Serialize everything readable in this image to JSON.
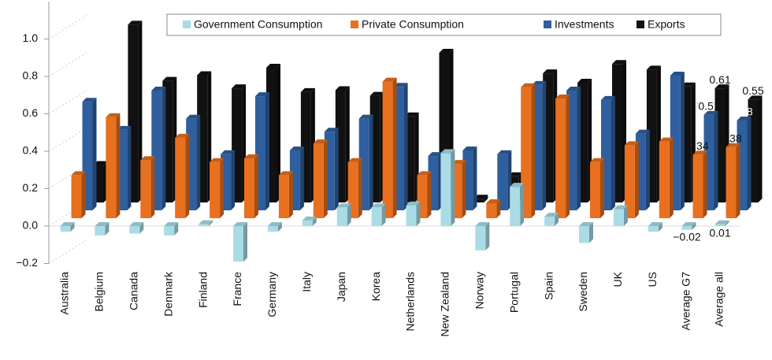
{
  "chart_data": {
    "type": "bar3d",
    "categories": [
      "Australia",
      "Belgium",
      "Canada",
      "Denmark",
      "Finland",
      "France",
      "Germany",
      "Italy",
      "Japan",
      "Korea",
      "Netherlands",
      "New Zealand",
      "Norway",
      "Portugal",
      "Spain",
      "Sweden",
      "UK",
      "US",
      "Average G7",
      "Average all"
    ],
    "series": [
      {
        "name": "Government Consumption",
        "color": "#a9dce6",
        "values": [
          -0.03,
          -0.05,
          -0.04,
          -0.05,
          0.01,
          -0.19,
          -0.03,
          0.03,
          0.1,
          0.1,
          0.11,
          0.39,
          -0.13,
          0.21,
          0.05,
          -0.09,
          0.09,
          -0.03,
          -0.02,
          0.01
        ],
        "value_labels": [
          null,
          null,
          null,
          null,
          null,
          null,
          null,
          null,
          null,
          null,
          null,
          null,
          null,
          null,
          null,
          null,
          null,
          null,
          "−0.02",
          "0.01"
        ]
      },
      {
        "name": "Private Consumption",
        "color": "#e8701e",
        "values": [
          0.23,
          0.54,
          0.31,
          0.43,
          0.3,
          0.32,
          0.23,
          0.4,
          0.3,
          0.73,
          0.23,
          0.29,
          0.08,
          0.7,
          0.64,
          0.3,
          0.39,
          0.41,
          0.34,
          0.38
        ],
        "value_labels": [
          null,
          null,
          null,
          null,
          null,
          null,
          null,
          null,
          null,
          null,
          null,
          null,
          null,
          null,
          null,
          null,
          null,
          null,
          "0.34",
          "0.38"
        ]
      },
      {
        "name": "Investments",
        "color": "#2f5f9e",
        "values": [
          0.58,
          0.43,
          0.64,
          0.49,
          0.3,
          0.61,
          0.32,
          0.42,
          0.49,
          0.66,
          0.29,
          0.32,
          0.3,
          0.67,
          0.64,
          0.59,
          0.41,
          0.72,
          0.51,
          0.48
        ],
        "value_labels": [
          null,
          null,
          null,
          null,
          null,
          null,
          null,
          null,
          null,
          null,
          null,
          null,
          null,
          null,
          null,
          null,
          null,
          null,
          "0.51",
          "0.48"
        ]
      },
      {
        "name": "Exports",
        "color": "#111111",
        "values": [
          0.2,
          0.95,
          0.65,
          0.68,
          0.61,
          0.72,
          0.59,
          0.6,
          0.57,
          0.46,
          0.8,
          0.02,
          0.14,
          0.69,
          0.64,
          0.74,
          0.71,
          0.62,
          0.61,
          0.55
        ],
        "value_labels": [
          null,
          null,
          null,
          null,
          null,
          null,
          null,
          null,
          null,
          null,
          null,
          null,
          null,
          null,
          null,
          null,
          null,
          null,
          "0.61",
          "0.55"
        ]
      }
    ],
    "ylim": [
      -0.2,
      1.2
    ],
    "yticks": [
      {
        "value": -0.2,
        "label": "−0.2"
      },
      {
        "value": 0,
        "label": "0.0"
      },
      0.2,
      0.4,
      0.6,
      0.8,
      {
        "value": 1,
        "label": "1.0"
      }
    ],
    "legend": "top"
  }
}
